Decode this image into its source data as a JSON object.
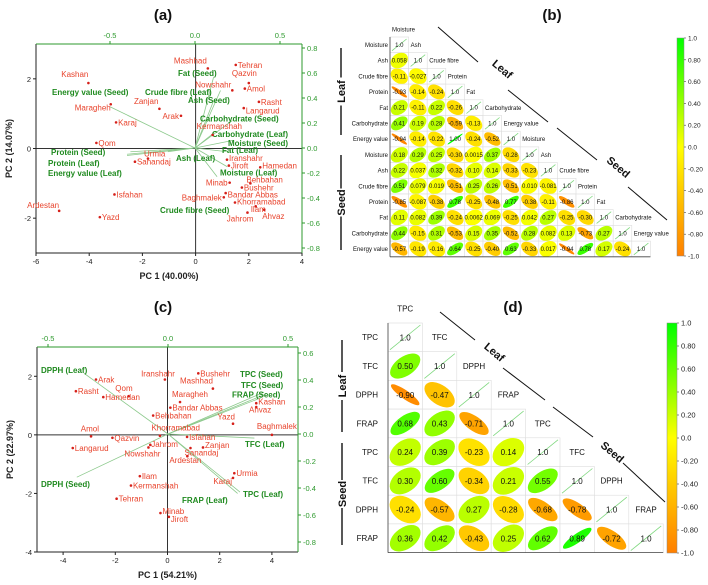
{
  "chart_data": [
    {
      "type": "scatter",
      "title": "(a)",
      "xlabel": "PC 1 (40.00%)",
      "ylabel": "PC 2 (14.07%)",
      "xlim": [
        -6,
        4
      ],
      "ylim": [
        -3,
        3
      ],
      "xticks": [
        "-6",
        "-4",
        "-2",
        "0",
        "2",
        "4"
      ],
      "yticks": [
        "-2",
        "0",
        "2"
      ],
      "top_ticks": [
        "-0.5",
        "0.0",
        "0.5"
      ],
      "right_ticks": [
        "0.8",
        "0.6",
        "0.4",
        "0.2",
        "0.0",
        "-0.2",
        "-0.4",
        "-0.6",
        "-0.8"
      ],
      "scores": [
        {
          "name": "Mashhad",
          "x": 0.46,
          "y": 2.3
        },
        {
          "name": "Tehran",
          "x": 1.51,
          "y": 2.4
        },
        {
          "name": "Qazvin",
          "x": 2.0,
          "y": 1.88
        },
        {
          "name": "Nowshahr",
          "x": 1.38,
          "y": 1.67
        },
        {
          "name": "Amol",
          "x": 1.85,
          "y": 1.72
        },
        {
          "name": "Rasht",
          "x": 2.38,
          "y": 1.34
        },
        {
          "name": "Langarud",
          "x": 1.81,
          "y": 1.16
        },
        {
          "name": "Kashan",
          "x": -4.03,
          "y": 1.88
        },
        {
          "name": "Maragheh",
          "x": -3.19,
          "y": 1.27
        },
        {
          "name": "Zanjan",
          "x": -1.36,
          "y": 1.14
        },
        {
          "name": "Arak",
          "x": -0.55,
          "y": 0.94
        },
        {
          "name": "Karaj",
          "x": -2.99,
          "y": 0.75
        },
        {
          "name": "Kermanshah",
          "x": 0.64,
          "y": 0.39
        },
        {
          "name": "Qom",
          "x": -3.73,
          "y": 0.16
        },
        {
          "name": "Urmia",
          "x": -1.79,
          "y": -0.29
        },
        {
          "name": "Sanandaj",
          "x": -2.28,
          "y": -0.38
        },
        {
          "name": "Iranshahr",
          "x": 1.18,
          "y": -0.32
        },
        {
          "name": "Jiroft",
          "x": 1.25,
          "y": -0.49
        },
        {
          "name": "Hamedan",
          "x": 2.43,
          "y": -0.54
        },
        {
          "name": "Behbahan",
          "x": 2.06,
          "y": -1.0
        },
        {
          "name": "Bushehr",
          "x": 1.74,
          "y": -1.12
        },
        {
          "name": "Minab",
          "x": 1.28,
          "y": -0.98
        },
        {
          "name": "Bandar Abbas",
          "x": 1.13,
          "y": -1.28
        },
        {
          "name": "Baghmalek",
          "x": 1.06,
          "y": -1.4
        },
        {
          "name": "Khorramabad",
          "x": 1.48,
          "y": -1.55
        },
        {
          "name": "Ilam",
          "x": 2.26,
          "y": -1.66
        },
        {
          "name": "Ahvaz",
          "x": 2.58,
          "y": -1.76
        },
        {
          "name": "Jahrom",
          "x": 1.95,
          "y": -1.84
        },
        {
          "name": "Isfahan",
          "x": -3.05,
          "y": -1.32
        },
        {
          "name": "Ardestan",
          "x": -5.13,
          "y": -1.79
        },
        {
          "name": "Yazd",
          "x": -3.6,
          "y": -1.97
        }
      ],
      "loadings": [
        {
          "name": "Energy value (Seed)",
          "x": -0.5,
          "y": 0.33
        },
        {
          "name": "Crude fibre (Leaf)",
          "x": 0.15,
          "y": 0.46
        },
        {
          "name": "Fat (Seed)",
          "x": 0.11,
          "y": 0.57
        },
        {
          "name": "Ash (Seed)",
          "x": 0.11,
          "y": 0.38
        },
        {
          "name": "Carbohydrate (Seed)",
          "x": 0.22,
          "y": 0.22
        },
        {
          "name": "Carbohydrate (Leaf)",
          "x": 0.11,
          "y": 0.12
        },
        {
          "name": "Moisture (Seed)",
          "x": 0.22,
          "y": 0.06
        },
        {
          "name": "Fat (Leaf)",
          "x": 0.19,
          "y": -0.03
        },
        {
          "name": "Ash (Leaf)",
          "x": -0.16,
          "y": -0.03
        },
        {
          "name": "Protein (Seed)",
          "x": -0.38,
          "y": -0.03
        },
        {
          "name": "Protein (Leaf)",
          "x": -0.4,
          "y": -0.05
        },
        {
          "name": "Energy value (Leaf)",
          "x": -0.4,
          "y": -0.06
        },
        {
          "name": "Moisture (Leaf)",
          "x": 0.19,
          "y": -0.15
        },
        {
          "name": "Crude fibre (Seed)",
          "x": 0.13,
          "y": -0.23
        }
      ]
    },
    {
      "type": "heatmap",
      "title": "(b)",
      "groups": [
        "Leaf",
        "Seed"
      ],
      "variables": [
        "Moisture",
        "Ash",
        "Crude fibre",
        "Protein",
        "Fat",
        "Carbohydrate",
        "Energy value",
        "Moisture",
        "Ash",
        "Crude fibre",
        "Protein",
        "Fat",
        "Carbohydrate",
        "Energy value"
      ],
      "matrix": [
        [
          "1.0"
        ],
        [
          "0.058",
          "1.0"
        ],
        [
          "-0.11",
          "-0.027",
          "1.0"
        ],
        [
          "-0.93",
          "-0.14",
          "-0.24",
          "1.0"
        ],
        [
          "0.21",
          "-0.11",
          "0.22",
          "-0.26",
          "1.0"
        ],
        [
          "0.41",
          "0.19",
          "0.28",
          "-0.59",
          "-0.13",
          "1.0"
        ],
        [
          "-0.94",
          "-0.14",
          "-0.22",
          "1.00",
          "-0.24",
          "-0.52",
          "1.0"
        ],
        [
          "0.18",
          "0.29",
          "0.25",
          "-0.30",
          "0.0015",
          "0.37",
          "-0.28",
          "1.0"
        ],
        [
          "0.22",
          "0.037",
          "0.32",
          "-0.32",
          "0.10",
          "0.14",
          "-0.33",
          "-0.23",
          "1.0"
        ],
        [
          "0.51",
          "0.079",
          "0.019",
          "-0.51",
          "0.25",
          "0.26",
          "-0.51",
          "0.010",
          "-0.081",
          "1.0"
        ],
        [
          "-0.85",
          "-0.087",
          "-0.38",
          "0.78",
          "-0.25",
          "-0.48",
          "0.77",
          "-0.38",
          "-0.11",
          "-0.86",
          "1.0"
        ],
        [
          "0.11",
          "0.082",
          "0.39",
          "-0.24",
          "0.0062",
          "0.069",
          "-0.25",
          "0.042",
          "0.27",
          "-0.25",
          "-0.30",
          "1.0"
        ],
        [
          "0.44",
          "-0.15",
          "0.31",
          "-0.53",
          "0.15",
          "0.35",
          "-0.52",
          "0.28",
          "0.082",
          "0.13",
          "-0.73",
          "0.27",
          "1.0"
        ],
        [
          "-0.57",
          "-0.19",
          "-0.16",
          "0.64",
          "-0.25",
          "-0.40",
          "0.63",
          "-0.33",
          "0.017",
          "-0.94",
          "0.78",
          "0.17",
          "-0.24",
          "1.0"
        ]
      ],
      "colorbar_ticks": [
        "1.0",
        "0.80",
        "0.60",
        "0.40",
        "0.20",
        "0.0",
        "-0.20",
        "-0.40",
        "-0.60",
        "-0.80",
        "-1.0"
      ],
      "colors": {
        "neg": "#ff7f00",
        "zero": "#ffff00",
        "pos": "#00ff00"
      }
    },
    {
      "type": "scatter",
      "title": "(c)",
      "xlabel": "PC 1 (54.21%)",
      "ylabel": "PC 2 (22.97%)",
      "xlim": [
        -5,
        5
      ],
      "ylim": [
        -4,
        3
      ],
      "xticks": [
        "-4",
        "-2",
        "0",
        "2",
        "4"
      ],
      "yticks": [
        "-4",
        "-2",
        "0",
        "2"
      ],
      "top_ticks": [
        "-0.5",
        "0.0",
        "0.5"
      ],
      "right_ticks": [
        "0.6",
        "0.4",
        "0.2",
        "0.0",
        "-0.2",
        "-0.4",
        "-0.6",
        "-0.8"
      ],
      "scores": [
        {
          "name": "Iranshahr",
          "x": -0.1,
          "y": 1.89
        },
        {
          "name": "Bushehr",
          "x": 1.18,
          "y": 2.1
        },
        {
          "name": "Mashhad",
          "x": 1.74,
          "y": 1.58
        },
        {
          "name": "Arak",
          "x": -2.74,
          "y": 1.89
        },
        {
          "name": "Rasht",
          "x": -3.51,
          "y": 1.49
        },
        {
          "name": "Hamedan",
          "x": -2.46,
          "y": 1.29
        },
        {
          "name": "Qom",
          "x": -1.49,
          "y": 1.32
        },
        {
          "name": "Maragheh",
          "x": 0.48,
          "y": 1.12
        },
        {
          "name": "Bandar Abbas",
          "x": 0.11,
          "y": 0.93
        },
        {
          "name": "Behbahan",
          "x": -0.55,
          "y": 0.66
        },
        {
          "name": "Kashan",
          "x": 3.4,
          "y": 1.08
        },
        {
          "name": "Ahvaz",
          "x": 3.4,
          "y": 0.95
        },
        {
          "name": "Yazd",
          "x": 2.51,
          "y": 0.38
        },
        {
          "name": "Baghmalek",
          "x": 4.0,
          "y": 0.0
        },
        {
          "name": "Amol",
          "x": -2.93,
          "y": -0.05
        },
        {
          "name": "Qazvin",
          "x": -2.11,
          "y": -0.1
        },
        {
          "name": "Khorramabad",
          "x": -0.29,
          "y": -0.03
        },
        {
          "name": "Isfahan",
          "x": 0.75,
          "y": -0.07
        },
        {
          "name": "Langarud",
          "x": -3.63,
          "y": -0.45
        },
        {
          "name": "Jahrom",
          "x": -0.66,
          "y": -0.34
        },
        {
          "name": "Nowshahr",
          "x": -0.73,
          "y": -0.43
        },
        {
          "name": "Zanjan",
          "x": 1.36,
          "y": -0.43
        },
        {
          "name": "Sanandaj",
          "x": 0.88,
          "y": -0.45
        },
        {
          "name": "Ardestan",
          "x": 0.76,
          "y": -0.73
        },
        {
          "name": "Urmia",
          "x": 2.56,
          "y": -1.31
        },
        {
          "name": "Karaj",
          "x": 2.51,
          "y": -1.47
        },
        {
          "name": "Ilam",
          "x": -1.06,
          "y": -1.41
        },
        {
          "name": "Kermanshah",
          "x": -1.4,
          "y": -1.73
        },
        {
          "name": "Tehran",
          "x": -1.95,
          "y": -2.18
        },
        {
          "name": "Minab",
          "x": -0.27,
          "y": -2.67
        },
        {
          "name": "Jiroft",
          "x": 0.05,
          "y": -2.8
        }
      ],
      "loadings": [
        {
          "name": "DPPH (Leaf)",
          "x": -0.35,
          "y": 0.45
        },
        {
          "name": "TPC (Seed)",
          "x": 0.4,
          "y": 0.31
        },
        {
          "name": "TFC (Seed)",
          "x": 0.4,
          "y": 0.29
        },
        {
          "name": "FRAP (Seed)",
          "x": 0.39,
          "y": 0.27
        },
        {
          "name": "TFC (Leaf)",
          "x": 0.36,
          "y": -0.03
        },
        {
          "name": "TPC (Leaf)",
          "x": 0.3,
          "y": -0.43
        },
        {
          "name": "FRAP (Leaf)",
          "x": 0.29,
          "y": -0.44
        },
        {
          "name": "DPPH (Seed)",
          "x": -0.38,
          "y": -0.32
        }
      ]
    },
    {
      "type": "heatmap",
      "title": "(d)",
      "groups": [
        "Leaf",
        "Seed"
      ],
      "variables": [
        "TPC",
        "TFC",
        "DPPH",
        "FRAP",
        "TPC",
        "TFC",
        "DPPH",
        "FRAP"
      ],
      "matrix": [
        [
          "1.0"
        ],
        [
          "0.50",
          "1.0"
        ],
        [
          "-0.90",
          "-0.47",
          "1.0"
        ],
        [
          "0.68",
          "0.43",
          "-0.71",
          "1.0"
        ],
        [
          "0.24",
          "0.39",
          "-0.23",
          "0.14",
          "1.0"
        ],
        [
          "0.30",
          "0.60",
          "-0.34",
          "0.21",
          "0.55",
          "1.0"
        ],
        [
          "-0.24",
          "-0.57",
          "0.27",
          "-0.28",
          "-0.68",
          "-0.78",
          "1.0"
        ],
        [
          "0.36",
          "0.42",
          "-0.43",
          "0.25",
          "0.62",
          "0.89",
          "-0.72",
          "1.0"
        ]
      ],
      "colorbar_ticks": [
        "1.0",
        "0.80",
        "0.60",
        "0.40",
        "0.20",
        "0.0",
        "-0.20",
        "-0.40",
        "-0.60",
        "-0.80",
        "-1.0"
      ],
      "colors": {
        "neg": "#ff7f00",
        "zero": "#ffff00",
        "pos": "#00ff00"
      }
    }
  ]
}
